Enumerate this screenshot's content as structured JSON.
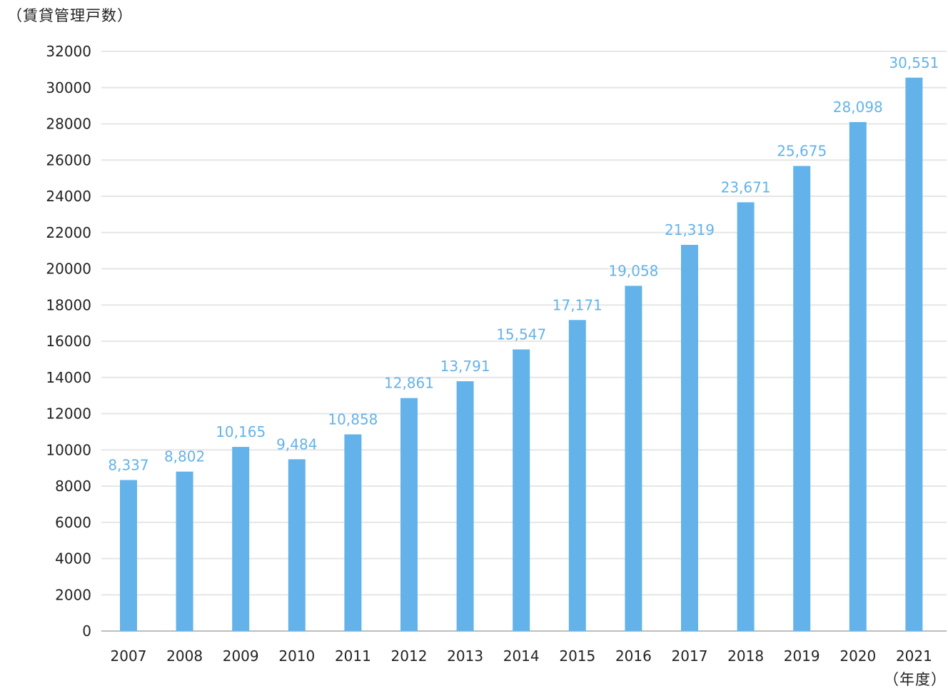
{
  "chart_data": {
    "type": "bar",
    "ylabel": "（賃貸管理戸数）",
    "xlabel": "（年度）",
    "categories": [
      "2007",
      "2008",
      "2009",
      "2010",
      "2011",
      "2012",
      "2013",
      "2014",
      "2015",
      "2016",
      "2017",
      "2018",
      "2019",
      "2020",
      "2021"
    ],
    "values": [
      8337,
      8802,
      10165,
      9484,
      10858,
      12861,
      13791,
      15547,
      17171,
      19058,
      21319,
      23671,
      25675,
      28098,
      30551
    ],
    "data_labels": [
      "8,337",
      "8,802",
      "10,165",
      "9,484",
      "10,858",
      "12,861",
      "13,791",
      "15,547",
      "17,171",
      "19,058",
      "21,319",
      "23,671",
      "25,675",
      "28,098",
      "30,551"
    ],
    "y_ticks": [
      "0",
      "2000",
      "4000",
      "6000",
      "8000",
      "10000",
      "12000",
      "14000",
      "16000",
      "18000",
      "20000",
      "22000",
      "24000",
      "26000",
      "28000",
      "30000",
      "32000"
    ],
    "ylim": [
      0,
      32000
    ],
    "grid": true,
    "bar_color": "#63b3ea",
    "label_color": "#63b3ea",
    "grid_color": "#e6e6e6",
    "text_color": "#222222"
  }
}
